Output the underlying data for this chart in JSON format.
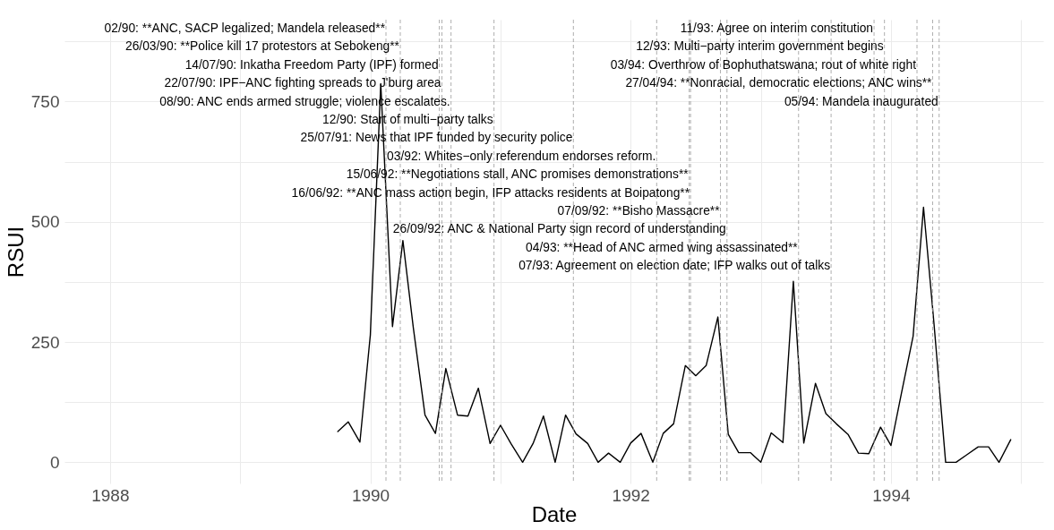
{
  "chart_data": {
    "type": "line",
    "xlabel": "Date",
    "ylabel": "RSUI",
    "x": [
      1989.75,
      1989.83,
      1989.92,
      1990.0,
      1990.08,
      1990.17,
      1990.25,
      1990.33,
      1990.42,
      1990.5,
      1990.58,
      1990.67,
      1990.75,
      1990.83,
      1990.92,
      1991.0,
      1991.08,
      1991.17,
      1991.25,
      1991.33,
      1991.42,
      1991.5,
      1991.58,
      1991.67,
      1991.75,
      1991.83,
      1991.92,
      1992.0,
      1992.08,
      1992.17,
      1992.25,
      1992.33,
      1992.42,
      1992.5,
      1992.58,
      1992.67,
      1992.75,
      1992.83,
      1992.92,
      1993.0,
      1993.08,
      1993.17,
      1993.25,
      1993.33,
      1993.42,
      1993.5,
      1993.58,
      1993.67,
      1993.75,
      1993.83,
      1993.92,
      1994.0,
      1994.08,
      1994.17,
      1994.25,
      1994.33,
      1994.42,
      1994.5,
      1994.58,
      1994.67,
      1994.75,
      1994.83,
      1994.92
    ],
    "series": [
      {
        "color": "#000000",
        "values": [
          64,
          84,
          42,
          265,
          787,
          282,
          461,
          280,
          98,
          60,
          195,
          98,
          96,
          154,
          39,
          77,
          39,
          0,
          39,
          96,
          0,
          98,
          59,
          39,
          0,
          19,
          0,
          40,
          60,
          0,
          60,
          80,
          201,
          180,
          201,
          302,
          58,
          20,
          20,
          0,
          61,
          41,
          376,
          40,
          164,
          101,
          80,
          58,
          19,
          18,
          73,
          35,
          143,
          262,
          530,
          290,
          0,
          0,
          15,
          32,
          32,
          0,
          47
        ]
      }
    ],
    "xlim": [
      1987.65,
      1995.17
    ],
    "xticks": [
      1988,
      {
        "value": 1989,
        "label": null
      },
      1990,
      {
        "value": 1991,
        "label": null
      },
      1992,
      {
        "value": 1993,
        "label": null
      },
      1994,
      {
        "value": 1995,
        "label": null
      }
    ],
    "ylim": [
      -44,
      920
    ],
    "yticks": [
      0,
      {
        "value": 125,
        "label": null
      },
      250,
      {
        "value": 375,
        "label": null
      },
      500,
      {
        "value": 625,
        "label": null
      },
      750,
      {
        "value": 875,
        "label": null
      }
    ],
    "grid": true,
    "line_style": "solid",
    "ref_lines": [
      {
        "axis": "x",
        "value": 1990.12,
        "color": "#999999",
        "line_style": "dashed",
        "label": "02/90: **ANC, SACP legalized; Mandela released**"
      },
      {
        "axis": "x",
        "value": 1990.23,
        "color": "#999999",
        "line_style": "dashed",
        "label": "26/03/90: **Police kill 17 protestors at Sebokeng**"
      },
      {
        "axis": "x",
        "value": 1990.53,
        "color": "#999999",
        "line_style": "dashed",
        "label": "14/07/90: Inkatha Freedom Party (IPF) formed"
      },
      {
        "axis": "x",
        "value": 1990.55,
        "color": "#999999",
        "line_style": "dashed",
        "label": "22/07/90: IPF−ANC fighting spreads to J'burg area"
      },
      {
        "axis": "x",
        "value": 1990.62,
        "color": "#999999",
        "line_style": "dashed",
        "label": "08/90: ANC ends armed struggle; violence escalates."
      },
      {
        "axis": "x",
        "value": 1990.95,
        "color": "#999999",
        "line_style": "dashed",
        "label": "12/90: Start of multi−party talks"
      },
      {
        "axis": "x",
        "value": 1991.56,
        "color": "#999999",
        "line_style": "dashed",
        "label": "25/07/91: News that IPF funded by security police"
      },
      {
        "axis": "x",
        "value": 1992.2,
        "color": "#999999",
        "line_style": "dashed",
        "label": "03/92: Whites−only referendum endorses reform."
      },
      {
        "axis": "x",
        "value": 1992.45,
        "color": "#999999",
        "line_style": "dashed",
        "label": "15/06/92: **Negotiations stall, ANC promises demonstrations**"
      },
      {
        "axis": "x",
        "value": 1992.46,
        "color": "#999999",
        "line_style": "dashed",
        "label": "16/06/92: **ANC mass action begin, IFP attacks residents at Boipatong**"
      },
      {
        "axis": "x",
        "value": 1992.69,
        "color": "#999999",
        "line_style": "dashed",
        "label": "07/09/92: **Bisho Massacre**"
      },
      {
        "axis": "x",
        "value": 1992.74,
        "color": "#999999",
        "line_style": "dashed",
        "label": "26/09/92: ANC & National Party sign record of understanding"
      },
      {
        "axis": "x",
        "value": 1993.29,
        "color": "#999999",
        "line_style": "dashed",
        "label": "04/93: **Head of ANC armed wing assassinated**"
      },
      {
        "axis": "x",
        "value": 1993.54,
        "color": "#999999",
        "line_style": "dashed",
        "label": "07/93: Agreement on election date; IFP walks out of talks"
      },
      {
        "axis": "x",
        "value": 1993.87,
        "color": "#999999",
        "line_style": "dashed",
        "label": "11/93: Agree on interim constitution"
      },
      {
        "axis": "x",
        "value": 1993.95,
        "color": "#999999",
        "line_style": "dashed",
        "label": "12/93: Multi−party interim government begins"
      },
      {
        "axis": "x",
        "value": 1994.2,
        "color": "#999999",
        "line_style": "dashed",
        "label": "03/94: Overthrow of Bophuthatswana; rout of white right"
      },
      {
        "axis": "x",
        "value": 1994.32,
        "color": "#999999",
        "line_style": "dashed",
        "label": "27/04/94: **Nonracial, democratic elections; ANC wins**"
      },
      {
        "axis": "x",
        "value": 1994.37,
        "color": "#999999",
        "line_style": "dashed",
        "label": "05/94: Mandela inaugurated"
      }
    ]
  }
}
